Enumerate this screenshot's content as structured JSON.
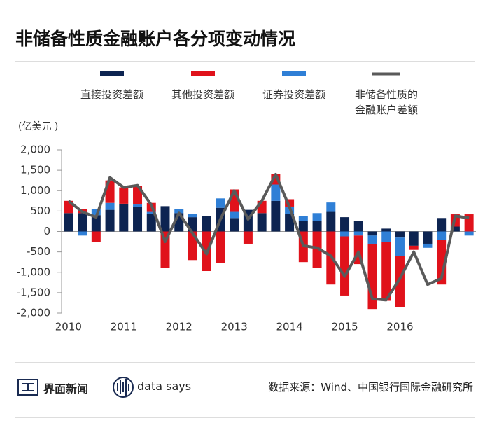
{
  "chart_data": {
    "type": "bar-line",
    "title": "非储备性质金融账户各分项变动情况",
    "unit": "(亿美元 )",
    "categories": [
      "2010",
      null,
      null,
      null,
      "2011",
      null,
      null,
      null,
      "2012",
      null,
      null,
      null,
      "2013",
      null,
      null,
      null,
      "2014",
      null,
      null,
      null,
      "2015",
      null,
      null,
      null,
      "2016",
      null,
      null,
      null,
      null,
      null
    ],
    "series": [
      {
        "name": "直接投资差额",
        "color": "#0d2451",
        "kind": "bar",
        "values": [
          450,
          450,
          400,
          530,
          680,
          600,
          430,
          620,
          450,
          350,
          370,
          580,
          330,
          530,
          450,
          750,
          430,
          250,
          250,
          480,
          350,
          250,
          -100,
          70,
          -150,
          -350,
          -300,
          330,
          120,
          0
        ]
      },
      {
        "name": "其他投资差额",
        "color": "#e0121b",
        "kind": "bar",
        "values": [
          300,
          100,
          -250,
          550,
          400,
          450,
          220,
          -900,
          0,
          -700,
          -970,
          -780,
          550,
          -300,
          300,
          250,
          180,
          -750,
          -900,
          -1300,
          -1450,
          -700,
          -1600,
          -1450,
          -1250,
          -100,
          0,
          -1100,
          300,
          420
        ]
      },
      {
        "name": "证券投资差额",
        "color": "#2f7fd6",
        "kind": "bar",
        "values": [
          0,
          -100,
          150,
          170,
          0,
          60,
          50,
          0,
          100,
          80,
          0,
          230,
          150,
          0,
          0,
          400,
          180,
          120,
          200,
          230,
          -120,
          -100,
          -200,
          -250,
          -450,
          0,
          -100,
          -200,
          0,
          -100
        ]
      },
      {
        "name": "非储备性质的\n金融账户差额",
        "color": "#5a5a5a",
        "kind": "line",
        "values": [
          750,
          480,
          350,
          1320,
          1080,
          1130,
          650,
          -250,
          450,
          -50,
          -550,
          300,
          1000,
          300,
          750,
          1400,
          600,
          -350,
          -400,
          -600,
          -1100,
          -500,
          -1650,
          -1680,
          -1150,
          -500,
          -1300,
          -1150,
          380,
          330
        ]
      }
    ],
    "ylim": [
      -2000,
      2000
    ],
    "yticks": [
      {
        "value": 2000,
        "label": "2,000"
      },
      {
        "value": 1500,
        "label": "1,500"
      },
      {
        "value": 1000,
        "label": "1,000"
      },
      500,
      0,
      -500,
      {
        "value": -1000,
        "label": "-1,000"
      },
      {
        "value": -1500,
        "label": "-1,500"
      },
      {
        "value": -2000,
        "label": "-2,000"
      }
    ],
    "grid": false
  },
  "footer": {
    "brand": "界面新闻",
    "brand2": "data says",
    "source": "数据来源：Wind、中国银行国际金融研究所"
  }
}
